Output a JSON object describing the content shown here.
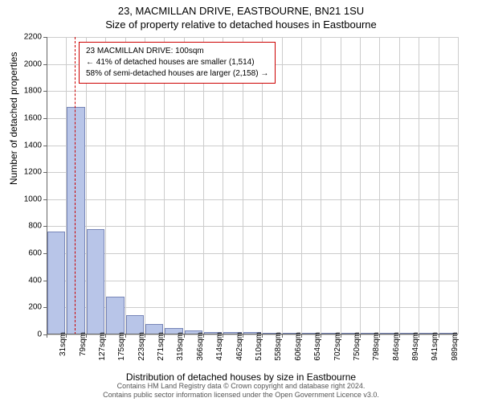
{
  "title": "23, MACMILLAN DRIVE, EASTBOURNE, BN21 1SU",
  "subtitle": "Size of property relative to detached houses in Eastbourne",
  "ylabel": "Number of detached properties",
  "xlabel": "Distribution of detached houses by size in Eastbourne",
  "footer1": "Contains HM Land Registry data © Crown copyright and database right 2024.",
  "footer2": "Contains public sector information licensed under the Open Government Licence v3.0.",
  "annotation": {
    "line1": "23 MACMILLAN DRIVE: 100sqm",
    "line2": "← 41% of detached houses are smaller (1,514)",
    "line3": "58% of semi-detached houses are larger (2,158) →"
  },
  "chart": {
    "type": "histogram",
    "ylim": [
      0,
      2200
    ],
    "yticks": [
      0,
      200,
      400,
      600,
      800,
      1000,
      1200,
      1400,
      1600,
      1800,
      2000,
      2200
    ],
    "xticks": [
      "31sqm",
      "79sqm",
      "127sqm",
      "175sqm",
      "223sqm",
      "271sqm",
      "319sqm",
      "366sqm",
      "414sqm",
      "462sqm",
      "510sqm",
      "558sqm",
      "606sqm",
      "654sqm",
      "702sqm",
      "750sqm",
      "798sqm",
      "846sqm",
      "894sqm",
      "941sqm",
      "989sqm"
    ],
    "bars": [
      760,
      1680,
      780,
      280,
      140,
      80,
      45,
      30,
      20,
      15,
      15,
      10,
      5,
      5,
      3,
      3,
      2,
      2,
      2,
      1,
      1
    ],
    "bar_color": "#b8c5e8",
    "bar_border": "#7886b8",
    "grid_color": "#cccccc",
    "marker_color": "#cc0000",
    "marker_position": 100,
    "background_color": "#ffffff",
    "title_fontsize": 13,
    "label_fontsize": 12,
    "tick_fontsize": 10
  }
}
